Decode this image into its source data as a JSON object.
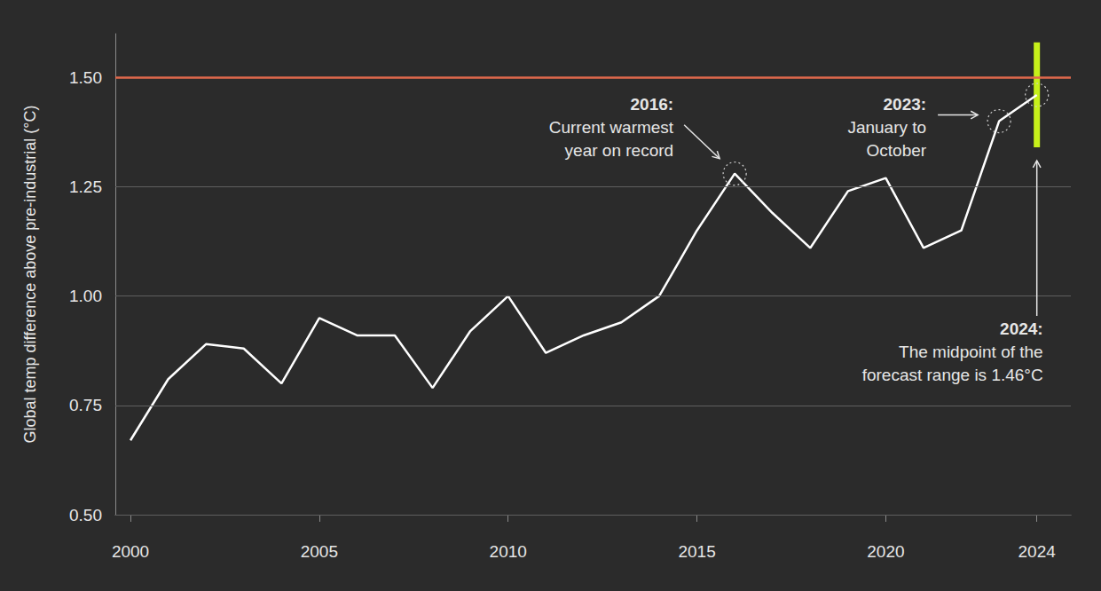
{
  "chart_data": {
    "type": "line",
    "y_label": "Global temp difference above pre-industrial (°C)",
    "x": [
      2000,
      2001,
      2002,
      2003,
      2004,
      2005,
      2006,
      2007,
      2008,
      2009,
      2010,
      2011,
      2012,
      2013,
      2014,
      2015,
      2016,
      2017,
      2018,
      2019,
      2020,
      2021,
      2022,
      2023,
      2024
    ],
    "values": [
      0.67,
      0.81,
      0.89,
      0.88,
      0.8,
      0.95,
      0.91,
      0.91,
      0.79,
      0.92,
      1.0,
      0.87,
      0.91,
      0.94,
      1.0,
      1.15,
      1.28,
      1.19,
      1.11,
      1.24,
      1.27,
      1.11,
      1.15,
      1.4,
      1.46
    ],
    "color": "#ffffff",
    "xlim": [
      1999.6,
      2024.9
    ],
    "xticks": [
      2000,
      2005,
      2010,
      2015,
      2020,
      2024
    ],
    "ylim": [
      0.5,
      1.6
    ],
    "yticks": [
      {
        "value": 0.5,
        "label": "0.50"
      },
      {
        "value": 0.75,
        "label": "0.75"
      },
      {
        "value": 1.0,
        "label": "1.00"
      },
      {
        "value": 1.25,
        "label": "1.25"
      },
      {
        "value": 1.5,
        "label": "1.50"
      }
    ],
    "grid": true,
    "reference_line": {
      "y": 1.5,
      "color": "#e0694d"
    },
    "forecast_range": {
      "x": 2024,
      "low": 1.34,
      "high": 1.58,
      "color": "#c6f01a"
    },
    "annotations": [
      {
        "x": 2016,
        "y": 1.28,
        "title": "2016:",
        "lines": [
          "Current warmest",
          "year on record"
        ]
      },
      {
        "x": 2023,
        "y": 1.4,
        "title": "2023:",
        "lines": [
          "January to",
          "October"
        ]
      },
      {
        "x": 2024,
        "y": 1.46,
        "title": "2024:",
        "lines": [
          "The midpoint of the",
          "forecast range is 1.46°C"
        ]
      }
    ]
  }
}
